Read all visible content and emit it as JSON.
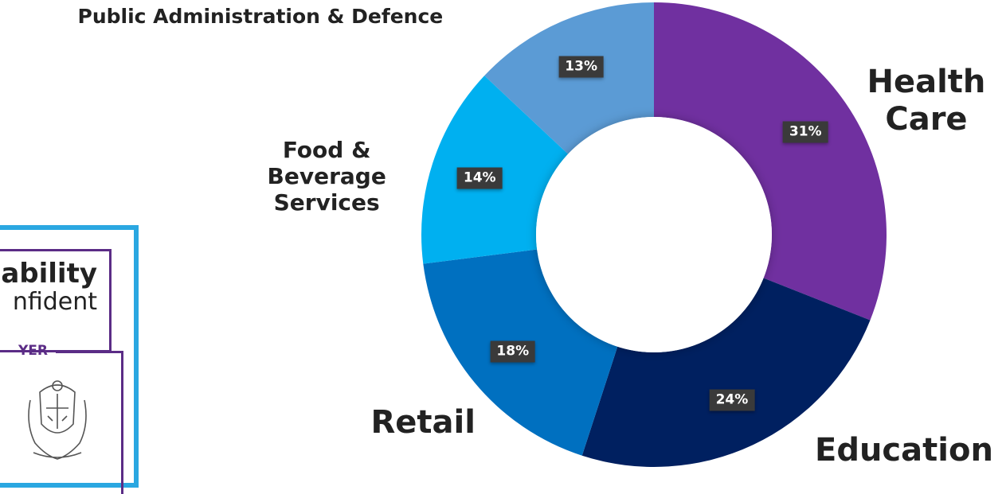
{
  "chart_data": {
    "type": "pie",
    "donut": true,
    "title": "",
    "categories": [
      "Health Care",
      "Education",
      "Retail",
      "Food & Beverage Services",
      "Public Administration & Defence"
    ],
    "values": [
      31,
      24,
      18,
      14,
      13
    ],
    "value_labels": [
      "31%",
      "24%",
      "18%",
      "14%",
      "13%"
    ],
    "category_labels": [
      [
        "Health",
        "Care"
      ],
      [
        "Education"
      ],
      [
        "Retail"
      ],
      [
        "Food &",
        "Beverage",
        "Services"
      ],
      [
        "Public Administration & Defence"
      ]
    ],
    "colors": [
      "#7030a0",
      "#002060",
      "#0070c0",
      "#00b0f0",
      "#5b9bd5"
    ],
    "start_angle_deg": 0,
    "direction": "clockwise",
    "legend": "none"
  },
  "logo": {
    "line1": "ability",
    "line2": "nfident",
    "line3": "YER",
    "border_color": "#2aa7e1",
    "accent_color": "#5b2c86",
    "crest_icon": "crest-icon"
  }
}
